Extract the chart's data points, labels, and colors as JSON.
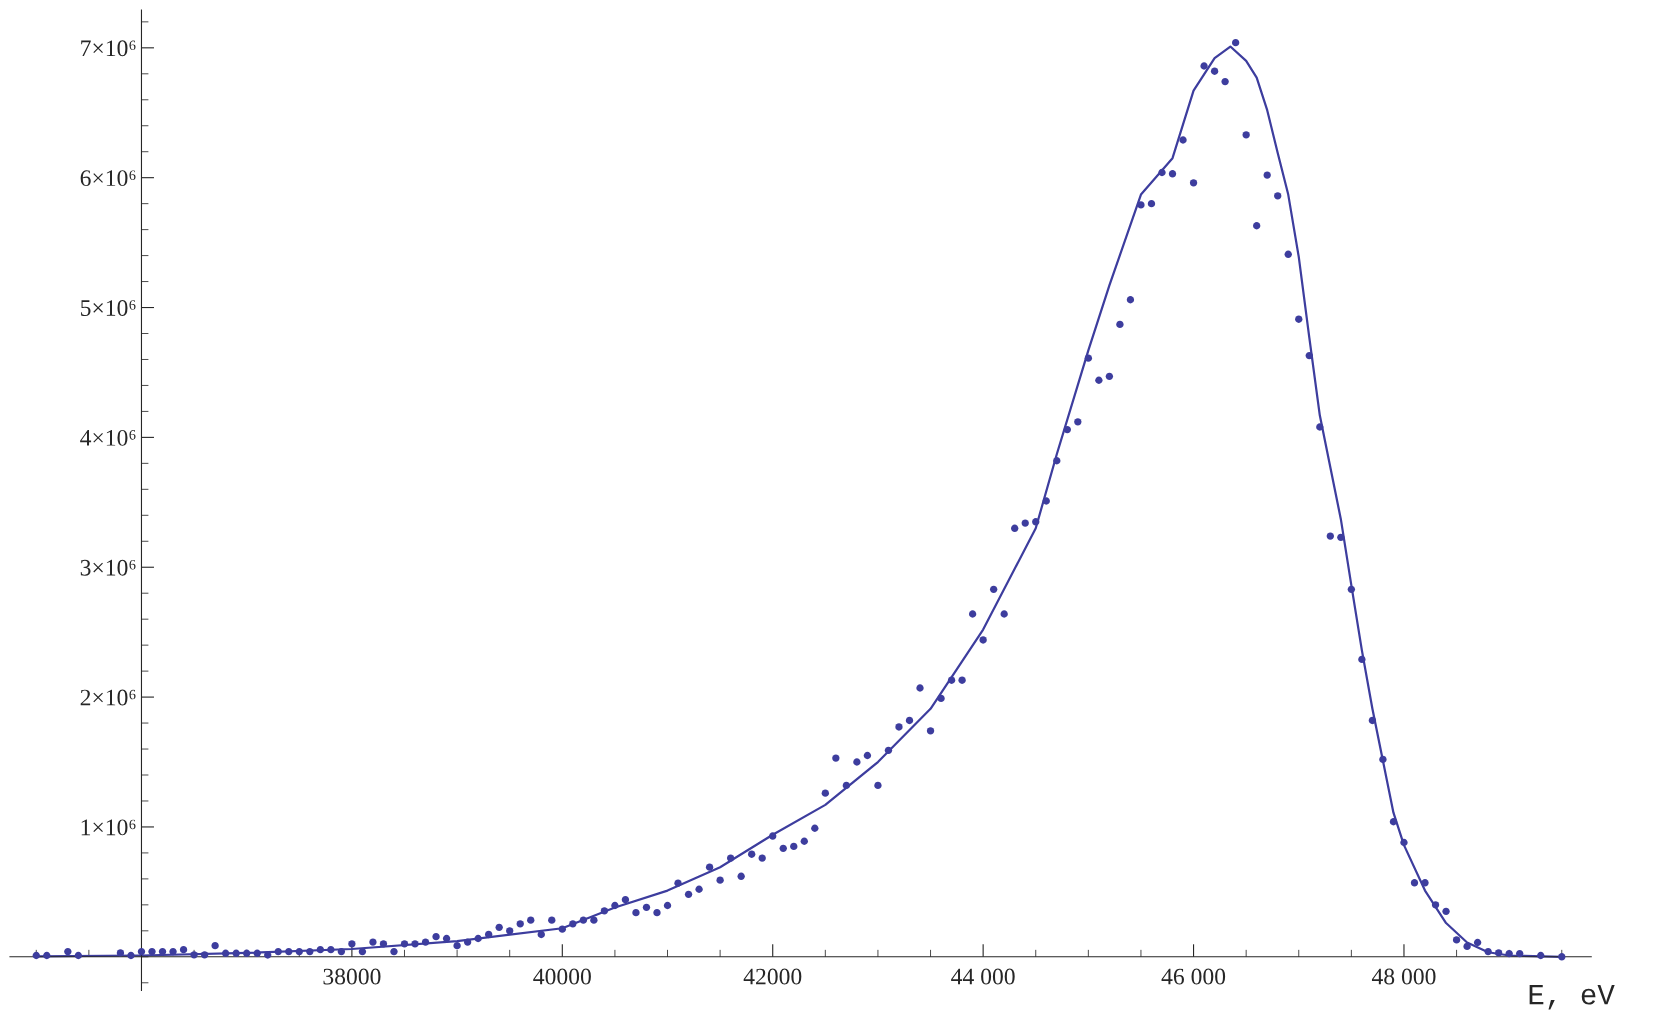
{
  "chart_data": {
    "type": "scatter",
    "xlabel": "E, eV",
    "xlim": [
      34750,
      49780
    ],
    "ylim": [
      -260000,
      7290000
    ],
    "xticks": [
      {
        "value": 38000,
        "label": "38000"
      },
      {
        "value": 40000,
        "label": "40000"
      },
      {
        "value": 42000,
        "label": "42000"
      },
      {
        "value": 44000,
        "label": "44 000"
      },
      {
        "value": 46000,
        "label": "46 000"
      },
      {
        "value": 48000,
        "label": "48 000"
      }
    ],
    "yticks": [
      {
        "value": 1000000,
        "label": "1×10⁶"
      },
      {
        "value": 2000000,
        "label": "2×10⁶"
      },
      {
        "value": 3000000,
        "label": "3×10⁶"
      },
      {
        "value": 4000000,
        "label": "4×10⁶"
      },
      {
        "value": 5000000,
        "label": "5×10⁶"
      },
      {
        "value": 6000000,
        "label": "6×10⁶"
      },
      {
        "value": 7000000,
        "label": "7×10⁶"
      }
    ],
    "grid": false,
    "legend": false,
    "series": [
      {
        "color": "#3d3d9e",
        "marker": "circle",
        "x": [
          35000,
          35100,
          35300,
          35400,
          35800,
          35900,
          36000,
          36100,
          36200,
          36300,
          36400,
          36500,
          36600,
          36700,
          36800,
          36900,
          37000,
          37100,
          37200,
          37300,
          37400,
          37500,
          37600,
          37700,
          37800,
          37900,
          38000,
          38100,
          38200,
          38300,
          38400,
          38500,
          38600,
          38700,
          38800,
          38900,
          39000,
          39100,
          39200,
          39300,
          39400,
          39500,
          39600,
          39700,
          39800,
          39900,
          40000,
          40100,
          40200,
          40300,
          40400,
          40500,
          40600,
          40700,
          40800,
          40900,
          41000,
          41100,
          41200,
          41300,
          41400,
          41500,
          41600,
          41700,
          41800,
          41900,
          42000,
          42100,
          42200,
          42300,
          42400,
          42500,
          42600,
          42700,
          42800,
          42900,
          43000,
          43100,
          43200,
          43300,
          43400,
          43500,
          43600,
          43700,
          43800,
          43900,
          44000,
          44100,
          44200,
          44300,
          44400,
          44500,
          44600,
          44700,
          44800,
          44900,
          45000,
          45100,
          45200,
          45300,
          45400,
          45500,
          45600,
          45700,
          45800,
          45900,
          46000,
          46100,
          46200,
          46300,
          46400,
          46500,
          46600,
          46700,
          46800,
          46900,
          47000,
          47100,
          47200,
          47300,
          47400,
          47500,
          47600,
          47700,
          47800,
          47900,
          48000,
          48100,
          48200,
          48300,
          48400,
          48500,
          48600,
          48700,
          48800,
          48900,
          49000,
          49100,
          49300,
          49500
        ],
        "values": [
          10000,
          10000,
          40000,
          10000,
          30000,
          10000,
          40000,
          40000,
          40000,
          40000,
          55000,
          15000,
          15000,
          86000,
          27000,
          27000,
          27000,
          27000,
          14000,
          40000,
          40000,
          40000,
          40000,
          55000,
          55000,
          40000,
          100000,
          40000,
          113000,
          100000,
          40000,
          100000,
          100000,
          113000,
          155000,
          141000,
          86000,
          113000,
          141000,
          172000,
          227000,
          200000,
          254000,
          282000,
          172000,
          282000,
          213000,
          254000,
          282000,
          282000,
          354000,
          395000,
          440000,
          340000,
          381000,
          340000,
          395000,
          567000,
          481000,
          520000,
          690000,
          590000,
          760000,
          620000,
          790000,
          760000,
          930000,
          835000,
          850000,
          890000,
          990000,
          1260000,
          1530000,
          1320000,
          1500000,
          1550000,
          1320000,
          1590000,
          1770000,
          1820000,
          2070000,
          1740000,
          1990000,
          2130000,
          2130000,
          2640000,
          2440000,
          2830000,
          2640000,
          3300000,
          3340000,
          3350000,
          3510000,
          3820000,
          4060000,
          4120000,
          4610000,
          4440000,
          4470000,
          4870000,
          5060000,
          5790000,
          5800000,
          6040000,
          6030000,
          6290000,
          5960000,
          6860000,
          6820000,
          6740000,
          7040000,
          6330000,
          5630000,
          6020000,
          5860000,
          5410000,
          4910000,
          4630000,
          4080000,
          3240000,
          3230000,
          2830000,
          2290000,
          1820000,
          1520000,
          1040000,
          880000,
          570000,
          570000,
          400000,
          350000,
          130000,
          80000,
          110000,
          40000,
          30000,
          25000,
          25000,
          10000,
          0
        ]
      },
      {
        "type": "line",
        "color": "#3d3d9e",
        "marker": "none",
        "line_style": "solid",
        "x": [
          35000,
          36000,
          37000,
          38000,
          39000,
          40000,
          40500,
          41000,
          41500,
          42000,
          42500,
          43000,
          43500,
          44000,
          44500,
          44700,
          45000,
          45200,
          45500,
          45800,
          46000,
          46200,
          46350,
          46500,
          46600,
          46700,
          46800,
          46900,
          47000,
          47100,
          47200,
          47400,
          47500,
          47600,
          47700,
          47800,
          47900,
          48000,
          48200,
          48400,
          48600,
          48800,
          49000,
          49500
        ],
        "values": [
          3000,
          10000,
          30000,
          60000,
          120000,
          220000,
          380000,
          510000,
          690000,
          940000,
          1170000,
          1500000,
          1910000,
          2520000,
          3300000,
          3870000,
          4670000,
          5170000,
          5870000,
          6150000,
          6670000,
          6920000,
          7010000,
          6900000,
          6770000,
          6520000,
          6190000,
          5870000,
          5390000,
          4770000,
          4170000,
          3370000,
          2860000,
          2360000,
          1910000,
          1510000,
          1110000,
          860000,
          510000,
          260000,
          110000,
          35000,
          10000,
          0
        ]
      }
    ]
  }
}
